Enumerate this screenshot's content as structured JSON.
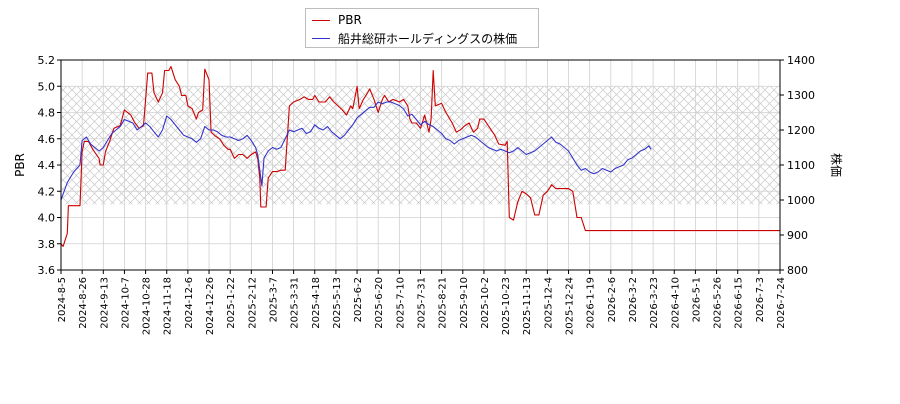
{
  "chart_data": {
    "type": "line",
    "ylabel_left": "PBR",
    "ylabel_right": "株価",
    "ylim_left": [
      3.6,
      5.2
    ],
    "ylim_right": [
      800,
      1400
    ],
    "yticks_left": [
      "3.6",
      "3.8",
      "4.0",
      "4.2",
      "4.4",
      "4.6",
      "4.8",
      "5.0",
      "5.2"
    ],
    "yticks_right": [
      "800",
      "900",
      "1000",
      "1100",
      "1200",
      "1300",
      "1400"
    ],
    "xticks": [
      "2024-8-5",
      "2024-8-26",
      "2024-9-13",
      "2024-10-7",
      "2024-10-28",
      "2024-11-18",
      "2024-12-6",
      "2024-12-26",
      "2025-1-22",
      "2025-2-12",
      "2025-3-7",
      "2025-3-31",
      "2025-4-18",
      "2025-5-13",
      "2025-6-2",
      "2025-6-20",
      "2025-7-10",
      "2025-7-31",
      "2025-8-21",
      "2025-9-10",
      "2025-10-2",
      "2025-10-23",
      "2025-11-13",
      "2025-12-4",
      "2025-12-24",
      "2026-1-19",
      "2026-2-6",
      "2026-3-2",
      "2026-3-23",
      "2026-4-10",
      "2026-5-1",
      "2026-5-26",
      "2026-6-15",
      "2026-7-3",
      "2026-7-24"
    ],
    "grid": true,
    "legend_position": "top-center",
    "series": [
      {
        "name": "PBR",
        "axis": "left",
        "color": "#cc0000",
        "points": [
          [
            0,
            3.8
          ],
          [
            0.1,
            3.78
          ],
          [
            0.3,
            3.88
          ],
          [
            0.35,
            4.09
          ],
          [
            0.9,
            4.09
          ],
          [
            1.0,
            4.5
          ],
          [
            1.1,
            4.58
          ],
          [
            1.3,
            4.58
          ],
          [
            1.5,
            4.52
          ],
          [
            1.8,
            4.45
          ],
          [
            1.85,
            4.4
          ],
          [
            2.0,
            4.4
          ],
          [
            2.1,
            4.5
          ],
          [
            2.3,
            4.58
          ],
          [
            2.5,
            4.68
          ],
          [
            2.8,
            4.7
          ],
          [
            3.0,
            4.82
          ],
          [
            3.3,
            4.78
          ],
          [
            3.5,
            4.72
          ],
          [
            3.7,
            4.68
          ],
          [
            3.9,
            4.7
          ],
          [
            4.0,
            4.9
          ],
          [
            4.1,
            5.1
          ],
          [
            4.3,
            5.1
          ],
          [
            4.4,
            4.95
          ],
          [
            4.6,
            4.88
          ],
          [
            4.8,
            4.95
          ],
          [
            4.9,
            5.12
          ],
          [
            5.1,
            5.12
          ],
          [
            5.2,
            5.15
          ],
          [
            5.4,
            5.05
          ],
          [
            5.6,
            5.0
          ],
          [
            5.7,
            4.93
          ],
          [
            5.9,
            4.93
          ],
          [
            6.0,
            4.85
          ],
          [
            6.2,
            4.83
          ],
          [
            6.4,
            4.75
          ],
          [
            6.5,
            4.8
          ],
          [
            6.7,
            4.82
          ],
          [
            6.8,
            5.13
          ],
          [
            7.0,
            5.05
          ],
          [
            7.1,
            4.65
          ],
          [
            7.3,
            4.62
          ],
          [
            7.5,
            4.6
          ],
          [
            7.7,
            4.55
          ],
          [
            7.9,
            4.52
          ],
          [
            8.0,
            4.52
          ],
          [
            8.2,
            4.45
          ],
          [
            8.4,
            4.48
          ],
          [
            8.6,
            4.48
          ],
          [
            8.8,
            4.45
          ],
          [
            9.0,
            4.48
          ],
          [
            9.2,
            4.5
          ],
          [
            9.3,
            4.45
          ],
          [
            9.4,
            4.3
          ],
          [
            9.45,
            4.08
          ],
          [
            9.7,
            4.08
          ],
          [
            9.8,
            4.3
          ],
          [
            10.0,
            4.35
          ],
          [
            10.2,
            4.35
          ],
          [
            10.4,
            4.36
          ],
          [
            10.6,
            4.36
          ],
          [
            10.8,
            4.85
          ],
          [
            11.0,
            4.88
          ],
          [
            11.3,
            4.9
          ],
          [
            11.5,
            4.92
          ],
          [
            11.7,
            4.9
          ],
          [
            11.9,
            4.9
          ],
          [
            12.0,
            4.93
          ],
          [
            12.2,
            4.88
          ],
          [
            12.5,
            4.88
          ],
          [
            12.7,
            4.92
          ],
          [
            12.9,
            4.88
          ],
          [
            13.1,
            4.85
          ],
          [
            13.3,
            4.82
          ],
          [
            13.5,
            4.78
          ],
          [
            13.7,
            4.85
          ],
          [
            13.8,
            4.83
          ],
          [
            14.0,
            5.0
          ],
          [
            14.1,
            4.83
          ],
          [
            14.3,
            4.9
          ],
          [
            14.5,
            4.95
          ],
          [
            14.6,
            4.98
          ],
          [
            14.8,
            4.9
          ],
          [
            15.0,
            4.8
          ],
          [
            15.2,
            4.9
          ],
          [
            15.3,
            4.93
          ],
          [
            15.5,
            4.88
          ],
          [
            15.7,
            4.9
          ],
          [
            16.0,
            4.88
          ],
          [
            16.2,
            4.9
          ],
          [
            16.4,
            4.85
          ],
          [
            16.5,
            4.75
          ],
          [
            16.6,
            4.72
          ],
          [
            16.8,
            4.72
          ],
          [
            17.0,
            4.68
          ],
          [
            17.2,
            4.78
          ],
          [
            17.4,
            4.65
          ],
          [
            17.5,
            4.75
          ],
          [
            17.6,
            5.12
          ],
          [
            17.7,
            4.85
          ],
          [
            18.0,
            4.87
          ],
          [
            18.2,
            4.8
          ],
          [
            18.5,
            4.72
          ],
          [
            18.7,
            4.65
          ],
          [
            18.9,
            4.67
          ],
          [
            19.1,
            4.7
          ],
          [
            19.3,
            4.72
          ],
          [
            19.5,
            4.65
          ],
          [
            19.7,
            4.68
          ],
          [
            19.8,
            4.75
          ],
          [
            20.0,
            4.75
          ],
          [
            20.2,
            4.7
          ],
          [
            20.5,
            4.63
          ],
          [
            20.7,
            4.56
          ],
          [
            21.0,
            4.55
          ],
          [
            21.1,
            4.58
          ],
          [
            21.2,
            4.0
          ],
          [
            21.4,
            3.98
          ],
          [
            21.6,
            4.12
          ],
          [
            21.8,
            4.2
          ],
          [
            22.0,
            4.18
          ],
          [
            22.2,
            4.15
          ],
          [
            22.4,
            4.02
          ],
          [
            22.6,
            4.02
          ],
          [
            22.8,
            4.17
          ],
          [
            23.0,
            4.2
          ],
          [
            23.2,
            4.25
          ],
          [
            23.4,
            4.22
          ],
          [
            23.6,
            4.22
          ],
          [
            24.0,
            4.22
          ],
          [
            24.2,
            4.2
          ],
          [
            24.4,
            4.0
          ],
          [
            24.6,
            4.0
          ],
          [
            24.8,
            3.9
          ],
          [
            25.5,
            3.9
          ],
          [
            26.5,
            3.9
          ],
          [
            27.5,
            3.9
          ],
          [
            28.5,
            3.9
          ],
          [
            29.5,
            3.9
          ],
          [
            30.5,
            3.9
          ],
          [
            31.5,
            3.9
          ],
          [
            32.5,
            3.9
          ],
          [
            33.5,
            3.9
          ],
          [
            34.5,
            3.9
          ],
          [
            34.8,
            3.9
          ]
        ]
      },
      {
        "name": "船井総研ホールディングスの株価",
        "axis": "right",
        "color": "#3333cc",
        "points": [
          [
            0,
            1000
          ],
          [
            0.3,
            1050
          ],
          [
            0.6,
            1080
          ],
          [
            0.9,
            1100
          ],
          [
            1.0,
            1170
          ],
          [
            1.2,
            1180
          ],
          [
            1.4,
            1160
          ],
          [
            1.6,
            1150
          ],
          [
            1.8,
            1140
          ],
          [
            2.0,
            1150
          ],
          [
            2.2,
            1170
          ],
          [
            2.4,
            1190
          ],
          [
            2.6,
            1200
          ],
          [
            2.8,
            1210
          ],
          [
            3.0,
            1230
          ],
          [
            3.2,
            1225
          ],
          [
            3.4,
            1220
          ],
          [
            3.6,
            1200
          ],
          [
            3.8,
            1210
          ],
          [
            4.0,
            1220
          ],
          [
            4.2,
            1210
          ],
          [
            4.4,
            1195
          ],
          [
            4.6,
            1180
          ],
          [
            4.8,
            1200
          ],
          [
            5.0,
            1240
          ],
          [
            5.2,
            1230
          ],
          [
            5.4,
            1215
          ],
          [
            5.6,
            1200
          ],
          [
            5.8,
            1185
          ],
          [
            6.0,
            1180
          ],
          [
            6.2,
            1175
          ],
          [
            6.4,
            1165
          ],
          [
            6.6,
            1175
          ],
          [
            6.8,
            1210
          ],
          [
            7.0,
            1200
          ],
          [
            7.2,
            1200
          ],
          [
            7.4,
            1195
          ],
          [
            7.6,
            1185
          ],
          [
            7.8,
            1180
          ],
          [
            8.0,
            1180
          ],
          [
            8.2,
            1175
          ],
          [
            8.4,
            1170
          ],
          [
            8.6,
            1175
          ],
          [
            8.8,
            1185
          ],
          [
            9.0,
            1170
          ],
          [
            9.2,
            1150
          ],
          [
            9.3,
            1130
          ],
          [
            9.4,
            1085
          ],
          [
            9.5,
            1040
          ],
          [
            9.6,
            1120
          ],
          [
            9.8,
            1140
          ],
          [
            10.0,
            1150
          ],
          [
            10.2,
            1145
          ],
          [
            10.4,
            1150
          ],
          [
            10.6,
            1175
          ],
          [
            10.8,
            1200
          ],
          [
            11.0,
            1195
          ],
          [
            11.2,
            1200
          ],
          [
            11.4,
            1205
          ],
          [
            11.6,
            1190
          ],
          [
            11.8,
            1195
          ],
          [
            12.0,
            1215
          ],
          [
            12.2,
            1205
          ],
          [
            12.4,
            1200
          ],
          [
            12.6,
            1210
          ],
          [
            12.8,
            1195
          ],
          [
            13.0,
            1185
          ],
          [
            13.2,
            1175
          ],
          [
            13.4,
            1185
          ],
          [
            13.6,
            1200
          ],
          [
            13.8,
            1215
          ],
          [
            14.0,
            1235
          ],
          [
            14.2,
            1245
          ],
          [
            14.4,
            1255
          ],
          [
            14.6,
            1265
          ],
          [
            14.8,
            1265
          ],
          [
            15.0,
            1280
          ],
          [
            15.2,
            1275
          ],
          [
            15.4,
            1280
          ],
          [
            15.6,
            1280
          ],
          [
            15.8,
            1275
          ],
          [
            16.0,
            1270
          ],
          [
            16.2,
            1260
          ],
          [
            16.4,
            1240
          ],
          [
            16.6,
            1245
          ],
          [
            16.8,
            1230
          ],
          [
            17.0,
            1215
          ],
          [
            17.2,
            1225
          ],
          [
            17.4,
            1215
          ],
          [
            17.6,
            1210
          ],
          [
            17.8,
            1200
          ],
          [
            18.0,
            1190
          ],
          [
            18.2,
            1175
          ],
          [
            18.4,
            1170
          ],
          [
            18.6,
            1160
          ],
          [
            18.8,
            1170
          ],
          [
            19.0,
            1175
          ],
          [
            19.2,
            1180
          ],
          [
            19.4,
            1185
          ],
          [
            19.6,
            1180
          ],
          [
            19.8,
            1170
          ],
          [
            20.0,
            1160
          ],
          [
            20.2,
            1150
          ],
          [
            20.4,
            1145
          ],
          [
            20.6,
            1140
          ],
          [
            20.8,
            1145
          ],
          [
            21.0,
            1140
          ],
          [
            21.2,
            1135
          ],
          [
            21.4,
            1140
          ],
          [
            21.6,
            1150
          ],
          [
            21.8,
            1140
          ],
          [
            22.0,
            1130
          ],
          [
            22.2,
            1135
          ],
          [
            22.4,
            1140
          ],
          [
            22.6,
            1150
          ],
          [
            22.8,
            1160
          ],
          [
            23.0,
            1170
          ],
          [
            23.2,
            1180
          ],
          [
            23.4,
            1165
          ],
          [
            23.6,
            1160
          ],
          [
            23.8,
            1150
          ],
          [
            24.0,
            1140
          ],
          [
            24.2,
            1120
          ],
          [
            24.4,
            1100
          ],
          [
            24.6,
            1085
          ],
          [
            24.8,
            1090
          ],
          [
            25.0,
            1080
          ],
          [
            25.2,
            1075
          ],
          [
            25.4,
            1080
          ],
          [
            25.6,
            1090
          ],
          [
            25.8,
            1085
          ],
          [
            26.0,
            1080
          ],
          [
            26.2,
            1090
          ],
          [
            26.4,
            1095
          ],
          [
            26.6,
            1100
          ],
          [
            26.8,
            1115
          ],
          [
            27.0,
            1120
          ],
          [
            27.2,
            1130
          ],
          [
            27.4,
            1140
          ],
          [
            27.6,
            1145
          ],
          [
            27.8,
            1155
          ],
          [
            27.9,
            1145
          ]
        ]
      }
    ]
  }
}
